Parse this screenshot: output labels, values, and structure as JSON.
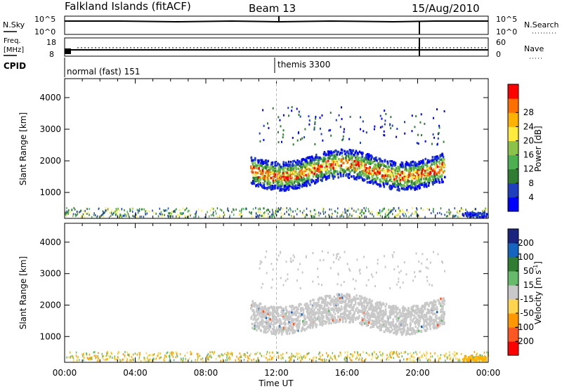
{
  "header": {
    "station": "Falkland Islands (fitACF)",
    "beam": "Beam 13",
    "date": "15/Aug/2010"
  },
  "status_panels": {
    "nsky": {
      "label": "N.Sky",
      "ticks_left": [
        "10^5",
        "10^0"
      ],
      "ticks_right": [
        "10^5",
        "10^0"
      ],
      "right_label": "N.Search"
    },
    "freq": {
      "label_line1": "Freq.",
      "label_line2": "[MHz]",
      "ticks_left": [
        "18",
        "8"
      ],
      "ticks_right": [
        "60",
        "0"
      ],
      "right_label": "Nave"
    },
    "cpid": {
      "label": "CPID",
      "modes": [
        "normal (fast) 151",
        "themis 3300"
      ]
    }
  },
  "chart_data": [
    {
      "type": "heatmap",
      "name": "power",
      "ylabel": "Slant Range [km]",
      "ylim": [
        180,
        4600
      ],
      "yticks": [
        1000,
        2000,
        3000,
        4000
      ],
      "xlim": [
        0,
        24
      ],
      "colorbar": {
        "label": "Power [dB]",
        "ticks": [
          4,
          8,
          12,
          16,
          20,
          24,
          28
        ],
        "colors": [
          "#0000ff",
          "#1f3fbf",
          "#2e7d32",
          "#4caf50",
          "#8bc34a",
          "#ffeb3b",
          "#ffb300",
          "#ff6f00",
          "#ff0000"
        ]
      }
    },
    {
      "type": "heatmap",
      "name": "velocity",
      "ylabel": "Slant Range [km]",
      "ylim": [
        180,
        4600
      ],
      "yticks": [
        1000,
        2000,
        3000,
        4000
      ],
      "xlim": [
        0,
        24
      ],
      "xlabel": "Time UT",
      "xticks": [
        "00:00",
        "04:00",
        "08:00",
        "12:00",
        "16:00",
        "20:00",
        "00:00"
      ],
      "colorbar": {
        "label": "Velocity [m s",
        "label_sup": "-1",
        "label_end": "]",
        "ticks": [
          200,
          100,
          50,
          15,
          -15,
          -50,
          -100,
          -200
        ],
        "colors": [
          "#1a237e",
          "#1565c0",
          "#2e7d32",
          "#66bb6a",
          "#c8c8c8",
          "#ffd54f",
          "#ff9800",
          "#ff5722",
          "#ff0000"
        ]
      }
    }
  ]
}
